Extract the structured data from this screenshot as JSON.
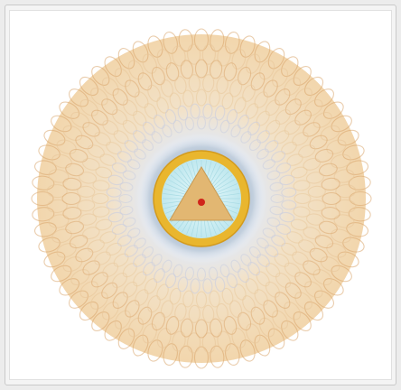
{
  "image": {
    "subject": "mandala-illustration",
    "palette": {
      "petal": "#e8c79a",
      "petal_shade": "#d9a46a",
      "petal_cool": "#c9cde0",
      "ring_blue": "#8aa2bc",
      "gold_ring": "#e9b62e",
      "inner_disc": "#cfeef2",
      "triangle": "#e2b772",
      "dot": "#d0251b"
    }
  }
}
